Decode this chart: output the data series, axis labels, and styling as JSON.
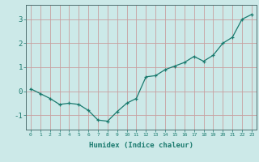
{
  "x": [
    0,
    1,
    2,
    3,
    4,
    5,
    6,
    7,
    8,
    9,
    10,
    11,
    12,
    13,
    14,
    15,
    16,
    17,
    18,
    19,
    20,
    21,
    22,
    23
  ],
  "y": [
    0.1,
    -0.1,
    -0.3,
    -0.55,
    -0.5,
    -0.55,
    -0.8,
    -1.2,
    -1.25,
    -0.85,
    -0.5,
    -0.3,
    0.6,
    0.65,
    0.9,
    1.05,
    1.2,
    1.45,
    1.25,
    1.5,
    2.0,
    2.25,
    3.0,
    3.2
  ],
  "xlabel": "Humidex (Indice chaleur)",
  "ylim": [
    -1.6,
    3.6
  ],
  "xlim": [
    -0.5,
    23.5
  ],
  "yticks": [
    -1,
    0,
    1,
    2,
    3
  ],
  "xtick_labels": [
    "0",
    "1",
    "2",
    "3",
    "4",
    "5",
    "6",
    "7",
    "8",
    "9",
    "10",
    "11",
    "12",
    "13",
    "14",
    "15",
    "16",
    "17",
    "18",
    "19",
    "20",
    "21",
    "22",
    "23"
  ],
  "line_color": "#1a7a6e",
  "marker": "+",
  "bg_color": "#cce9e8",
  "grid_color_v": "#c8a0a0",
  "grid_color_h": "#c8a0a0",
  "axis_color": "#507070",
  "tick_color": "#1a7a6e",
  "xlabel_color": "#1a7a6e"
}
